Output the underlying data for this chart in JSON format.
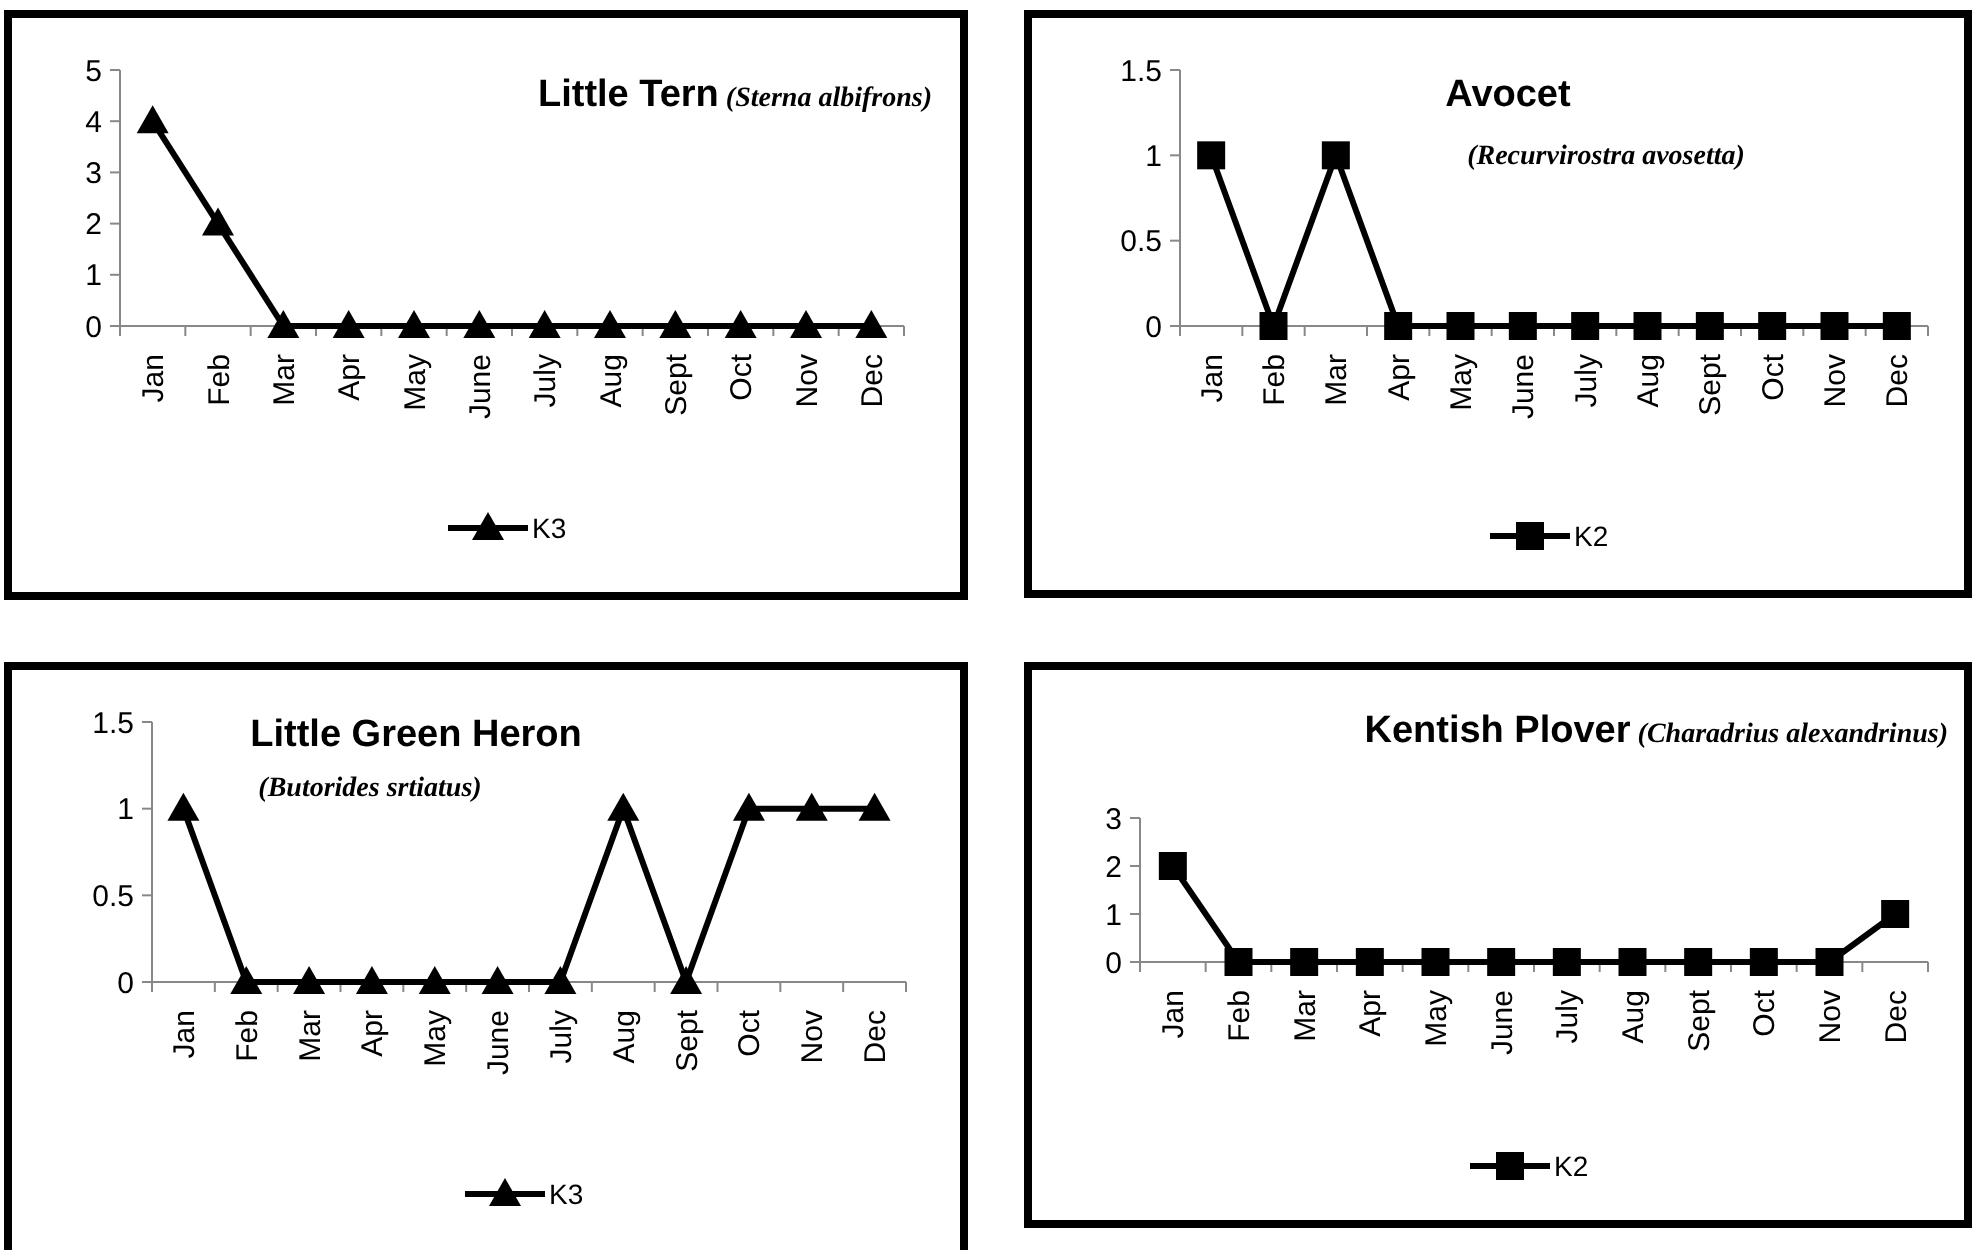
{
  "chart_data": [
    {
      "type": "line",
      "title": "Little Tern",
      "subtitle": "(Sterna albifrons)",
      "categories": [
        "Jan",
        "Feb",
        "Mar",
        "Apr",
        "May",
        "June",
        "July",
        "Aug",
        "Sept",
        "Oct",
        "Nov",
        "Dec"
      ],
      "series": [
        {
          "name": "K3",
          "color": "#000000",
          "values": [
            4,
            2,
            0,
            0,
            0,
            0,
            0,
            0,
            0,
            0,
            0,
            0
          ]
        }
      ],
      "ylim": [
        0,
        5
      ],
      "yticks": [
        0,
        1,
        2,
        3,
        4,
        5
      ],
      "grid": false,
      "legend": "bottom",
      "marker": "triangle",
      "line_style": "solid"
    },
    {
      "type": "line",
      "title": "Avocet",
      "subtitle": "(Recurvirostra avosetta)",
      "categories": [
        "Jan",
        "Feb",
        "Mar",
        "Apr",
        "May",
        "June",
        "July",
        "Aug",
        "Sept",
        "Oct",
        "Nov",
        "Dec"
      ],
      "series": [
        {
          "name": "K2",
          "color": "#000000",
          "values": [
            1,
            0,
            1,
            0,
            0,
            0,
            0,
            0,
            0,
            0,
            0,
            0
          ]
        }
      ],
      "ylim": [
        0,
        1.5
      ],
      "yticks": [
        0,
        0.5,
        1,
        1.5
      ],
      "grid": false,
      "legend": "bottom",
      "marker": "square",
      "line_style": "solid"
    },
    {
      "type": "line",
      "title": "Little Green Heron",
      "subtitle": "(Butorides srtiatus)",
      "categories": [
        "Jan",
        "Feb",
        "Mar",
        "Apr",
        "May",
        "June",
        "July",
        "Aug",
        "Sept",
        "Oct",
        "Nov",
        "Dec"
      ],
      "series": [
        {
          "name": "K3",
          "color": "#000000",
          "values": [
            1,
            0,
            0,
            0,
            0,
            0,
            0,
            1,
            0,
            1,
            1,
            1
          ]
        }
      ],
      "ylim": [
        0,
        1.5
      ],
      "yticks": [
        0,
        0.5,
        1,
        1.5
      ],
      "grid": false,
      "legend": "bottom",
      "marker": "triangle",
      "line_style": "solid"
    },
    {
      "type": "line",
      "title": "Kentish Plover",
      "subtitle": "(Charadrius alexandrinus)",
      "categories": [
        "Jan",
        "Feb",
        "Mar",
        "Apr",
        "May",
        "June",
        "July",
        "Aug",
        "Sept",
        "Oct",
        "Nov",
        "Dec"
      ],
      "series": [
        {
          "name": "K2",
          "color": "#000000",
          "values": [
            2,
            0,
            0,
            0,
            0,
            0,
            0,
            0,
            0,
            0,
            0,
            1
          ]
        }
      ],
      "ylim": [
        0,
        3
      ],
      "yticks": [
        0,
        1,
        2,
        3
      ],
      "grid": false,
      "legend": "bottom",
      "marker": "square",
      "line_style": "solid"
    }
  ]
}
